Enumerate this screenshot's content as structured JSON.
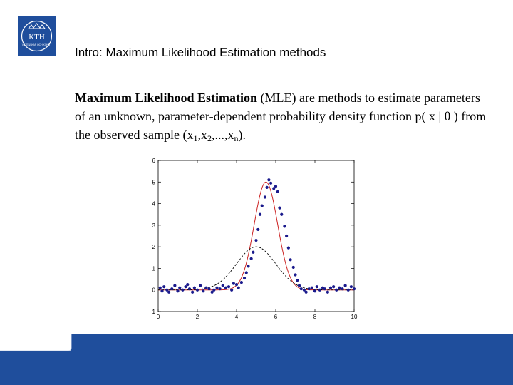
{
  "logo": {
    "text_top": "KTH",
    "text_bottom": "VETENSKAP OCH KONST",
    "color": "#1f4e9c"
  },
  "slide": {
    "title": "Intro: Maximum Likelihood Estimation methods",
    "paragraph": {
      "bold": "Maximum Likelihood Estimation",
      "part1": " (MLE) are methods to estimate parameters of an unknown, parameter-dependent probability density function ",
      "formula": "p( x | θ )",
      "part2": " from the observed sample (x",
      "sub1": "1",
      "sep1": ",x",
      "sub2": "2",
      "sep2": ",...,x",
      "subn": "n",
      "end": ")."
    }
  },
  "chart_data": {
    "type": "scatter",
    "xlim": [
      0,
      10
    ],
    "ylim": [
      -1,
      6
    ],
    "xticks": [
      0,
      2,
      4,
      6,
      8,
      10
    ],
    "yticks": [
      -1,
      0,
      1,
      2,
      3,
      4,
      5,
      6
    ],
    "grid": false,
    "series": [
      {
        "kind": "points",
        "color": "#1a1a8c",
        "x": [
          0.1,
          0.2,
          0.3,
          0.45,
          0.55,
          0.7,
          0.85,
          1.0,
          1.1,
          1.25,
          1.4,
          1.5,
          1.6,
          1.75,
          1.85,
          2.0,
          2.15,
          2.3,
          2.45,
          2.6,
          2.75,
          2.85,
          3.0,
          3.15,
          3.3,
          3.45,
          3.6,
          3.75,
          3.85,
          4.0,
          4.1,
          4.25,
          4.4,
          4.5,
          4.6,
          4.75,
          4.85,
          5.0,
          5.1,
          5.2,
          5.3,
          5.45,
          5.55,
          5.65,
          5.75,
          5.9,
          6.0,
          6.1,
          6.2,
          6.3,
          6.45,
          6.55,
          6.65,
          6.75,
          6.9,
          7.0,
          7.1,
          7.2,
          7.3,
          7.45,
          7.55,
          7.7,
          7.85,
          8.0,
          8.1,
          8.25,
          8.4,
          8.5,
          8.65,
          8.8,
          8.95,
          9.1,
          9.25,
          9.4,
          9.55,
          9.7,
          9.85,
          10.0
        ],
        "y": [
          0.1,
          -0.05,
          0.15,
          0.0,
          -0.1,
          0.05,
          0.2,
          -0.05,
          0.1,
          0.0,
          0.15,
          0.25,
          0.05,
          -0.1,
          0.1,
          0.0,
          0.2,
          -0.05,
          0.1,
          0.05,
          -0.1,
          0.0,
          0.1,
          0.05,
          0.2,
          0.1,
          0.15,
          0.0,
          0.3,
          0.25,
          0.1,
          0.35,
          0.55,
          0.8,
          1.1,
          1.45,
          1.75,
          2.3,
          2.8,
          3.5,
          3.9,
          4.3,
          4.75,
          5.1,
          4.95,
          4.7,
          4.8,
          4.55,
          3.8,
          3.5,
          2.95,
          2.5,
          1.95,
          1.4,
          1.05,
          0.7,
          0.45,
          0.2,
          0.05,
          0.0,
          -0.1,
          0.05,
          0.1,
          -0.05,
          0.15,
          0.0,
          0.1,
          0.05,
          -0.1,
          0.1,
          0.15,
          0.0,
          0.1,
          0.05,
          0.2,
          0.0,
          0.15,
          0.05
        ]
      },
      {
        "kind": "fit-line",
        "color": "#cc2222",
        "dash": false,
        "mu": 5.5,
        "sigma": 0.6,
        "amp": 5.0
      },
      {
        "kind": "density-line",
        "color": "#000000",
        "dash": true,
        "mu": 5.0,
        "sigma": 1.0,
        "amp": 2.0
      }
    ]
  },
  "footer": {
    "band_color": "#1f4e9c"
  }
}
